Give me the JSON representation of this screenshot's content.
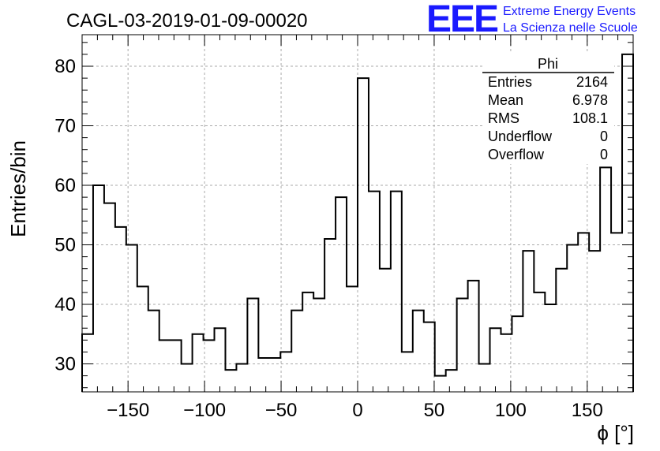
{
  "chart_data": {
    "type": "histogram",
    "title": "CAGL-03-2019-01-09-00020",
    "xlabel": "ϕ [°]",
    "ylabel": "Entries/bin",
    "xlim": [
      -180,
      180
    ],
    "ylim": [
      25.3,
      85.3
    ],
    "bin_width": 7.2,
    "x_ticks": [
      -150,
      -100,
      -50,
      0,
      50,
      100,
      150
    ],
    "x_tick_labels": [
      "−150",
      "−100",
      "−50",
      "0",
      "50",
      "100",
      "150"
    ],
    "y_ticks": [
      30,
      40,
      50,
      60,
      70,
      80
    ],
    "y_tick_labels": [
      "30",
      "40",
      "50",
      "60",
      "70",
      "80"
    ],
    "grid": true,
    "series": [
      {
        "name": "Phi",
        "values": [
          35,
          60,
          57,
          53,
          50,
          43,
          39,
          34,
          34,
          30,
          35,
          34,
          36,
          29,
          30,
          41,
          31,
          31,
          32,
          39,
          42,
          41,
          51,
          58,
          43,
          78,
          59,
          46,
          59,
          32,
          39,
          37,
          28,
          29,
          41,
          44,
          30,
          36,
          35,
          38,
          49,
          42,
          40,
          46,
          50,
          52,
          49,
          63,
          52,
          82
        ]
      }
    ],
    "stats_box": {
      "title": "Phi",
      "rows": [
        {
          "label": "Entries",
          "value": "2164"
        },
        {
          "label": "Mean",
          "value": "6.978"
        },
        {
          "label": "RMS",
          "value": "108.1"
        },
        {
          "label": "Underflow",
          "value": "0"
        },
        {
          "label": "Overflow",
          "value": "0"
        }
      ]
    },
    "logo": {
      "mark": "EEE",
      "line1": "Extreme Energy Events",
      "line2": "La Scienza nelle Scuole",
      "color": "#1a1aff"
    }
  }
}
